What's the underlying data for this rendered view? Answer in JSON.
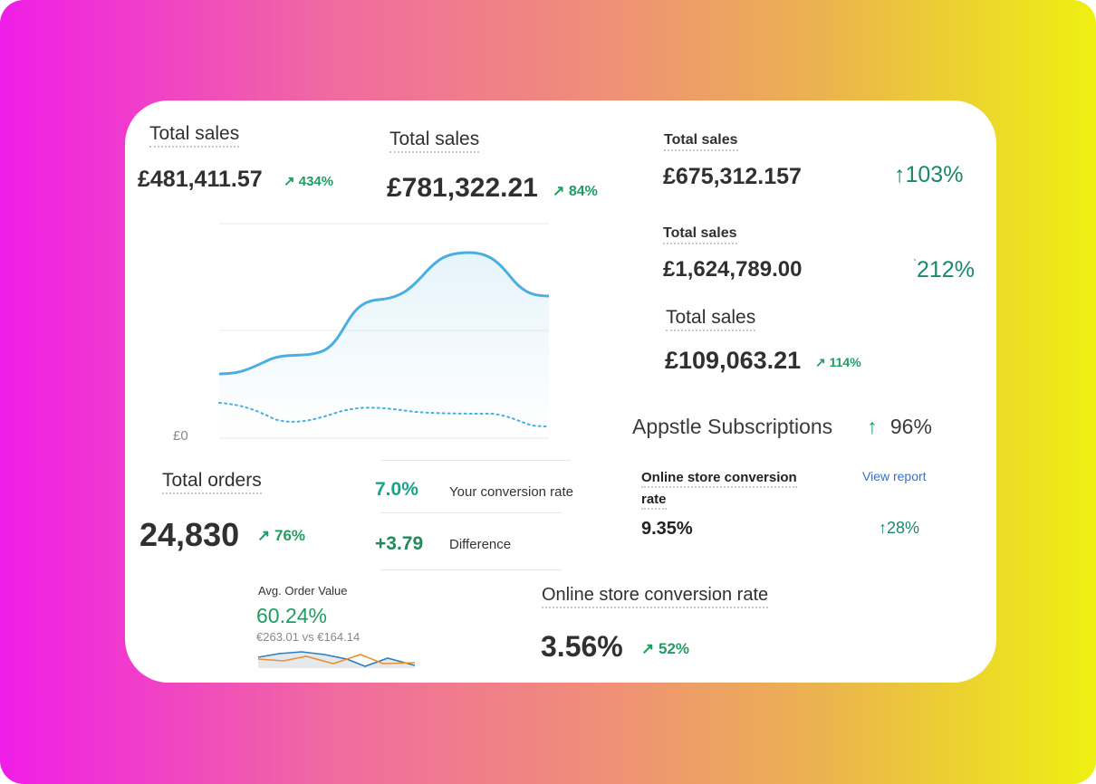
{
  "colors": {
    "gradient_start": "#f01de8",
    "gradient_end": "#eef011",
    "card": "#ffffff",
    "text_dark": "#303030",
    "green": "#1f9d63",
    "link_blue": "#3a6fc8",
    "line_blue": "#4aaee0"
  },
  "widgets": {
    "sales1": {
      "label": "Total sales",
      "value": "£481,411.57",
      "change_icon": "arrow-up-right-icon",
      "change": "434%"
    },
    "sales2": {
      "label": "Total sales",
      "value": "£781,322.21",
      "change_icon": "arrow-up-right-icon",
      "change": "84%"
    },
    "sales3": {
      "label": "Total sales",
      "value": "£675,312.157",
      "change_icon": "arrow-up-icon",
      "change": "103%"
    },
    "sales4": {
      "label": "Total sales",
      "value": "£1,624,789.00",
      "change_icon": "arrow-up-icon",
      "change": "212%"
    },
    "sales5": {
      "label": "Total sales",
      "value": "£109,063.21",
      "change_icon": "arrow-up-right-icon",
      "change": "114%"
    },
    "chart": {
      "y_label": "£0"
    },
    "subscriptions": {
      "label": "Appstle Subscriptions",
      "change_icon": "arrow-up-icon",
      "change": "96%"
    },
    "orders": {
      "label": "Total orders",
      "value": "24,830",
      "change_icon": "arrow-up-right-icon",
      "change": "76%"
    },
    "conversion_panel": {
      "rate_value": "7.0%",
      "rate_label": "Your conversion rate",
      "diff_value": "+3.79",
      "diff_label": "Difference"
    },
    "online_conv1": {
      "label_line1": "Online store conversion",
      "label_line2": "rate",
      "link": "View report",
      "value": "9.35%",
      "change_icon": "arrow-up-icon",
      "change": "28%"
    },
    "aov": {
      "label": "Avg. Order Value",
      "value": "60.24%",
      "compare": "€263.01 vs €164.14"
    },
    "online_conv2": {
      "label": "Online store conversion rate",
      "value": "3.56%",
      "change_icon": "arrow-up-right-icon",
      "change": "52%"
    }
  }
}
